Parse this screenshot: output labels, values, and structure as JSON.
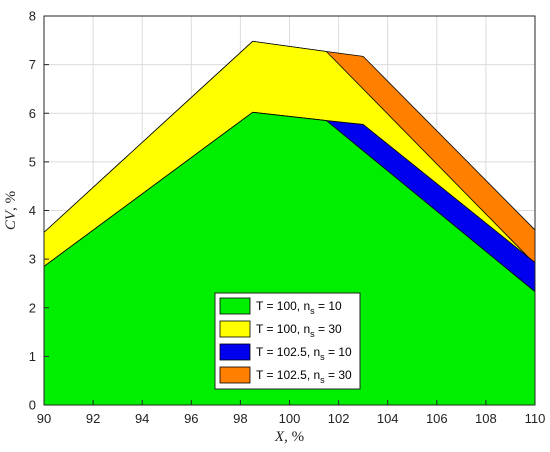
{
  "chart_data": {
    "type": "area",
    "xlim": [
      90,
      110
    ],
    "ylim": [
      0,
      8
    ],
    "xticks": [
      90,
      92,
      94,
      96,
      98,
      100,
      102,
      104,
      106,
      108,
      110
    ],
    "yticks": [
      0,
      1,
      2,
      3,
      4,
      5,
      6,
      7,
      8
    ],
    "xlabel": {
      "var": "X",
      "unit": ", %"
    },
    "ylabel": {
      "var": "CV",
      "unit": ", %"
    },
    "grid": true,
    "legend_position": "bottom-center",
    "series": [
      {
        "name": "T = 100, n_s = 10",
        "label_main": "T = 100, n",
        "label_sub": "s",
        "label_tail": " = 10",
        "color": "#00ee00",
        "x": [
          90,
          98.5,
          101.5,
          110
        ],
        "y": [
          2.85,
          6.02,
          5.85,
          2.33
        ]
      },
      {
        "name": "T = 100, n_s = 30",
        "label_main": "T = 100, n",
        "label_sub": "s",
        "label_tail": " = 30",
        "color": "#ffff00",
        "x": [
          90,
          98.5,
          101.5,
          110
        ],
        "y": [
          3.55,
          7.48,
          7.27,
          2.9
        ]
      },
      {
        "name": "T = 102.5, n_s = 10",
        "label_main": "T = 102.5, n",
        "label_sub": "s",
        "label_tail": " = 10",
        "color": "#0000ee",
        "x": [
          90,
          98.5,
          101.5,
          103,
          110
        ],
        "y": [
          2.85,
          6.02,
          5.85,
          5.77,
          2.93
        ]
      },
      {
        "name": "T = 102.5, n_s = 30",
        "label_main": "T = 102.5, n",
        "label_sub": "s",
        "label_tail": " = 30",
        "color": "#ff7f00",
        "x": [
          90,
          98.5,
          101.5,
          103,
          110
        ],
        "y": [
          3.55,
          7.48,
          7.27,
          7.17,
          3.6
        ]
      }
    ],
    "draw_order": [
      3,
      1,
      2,
      0
    ]
  }
}
